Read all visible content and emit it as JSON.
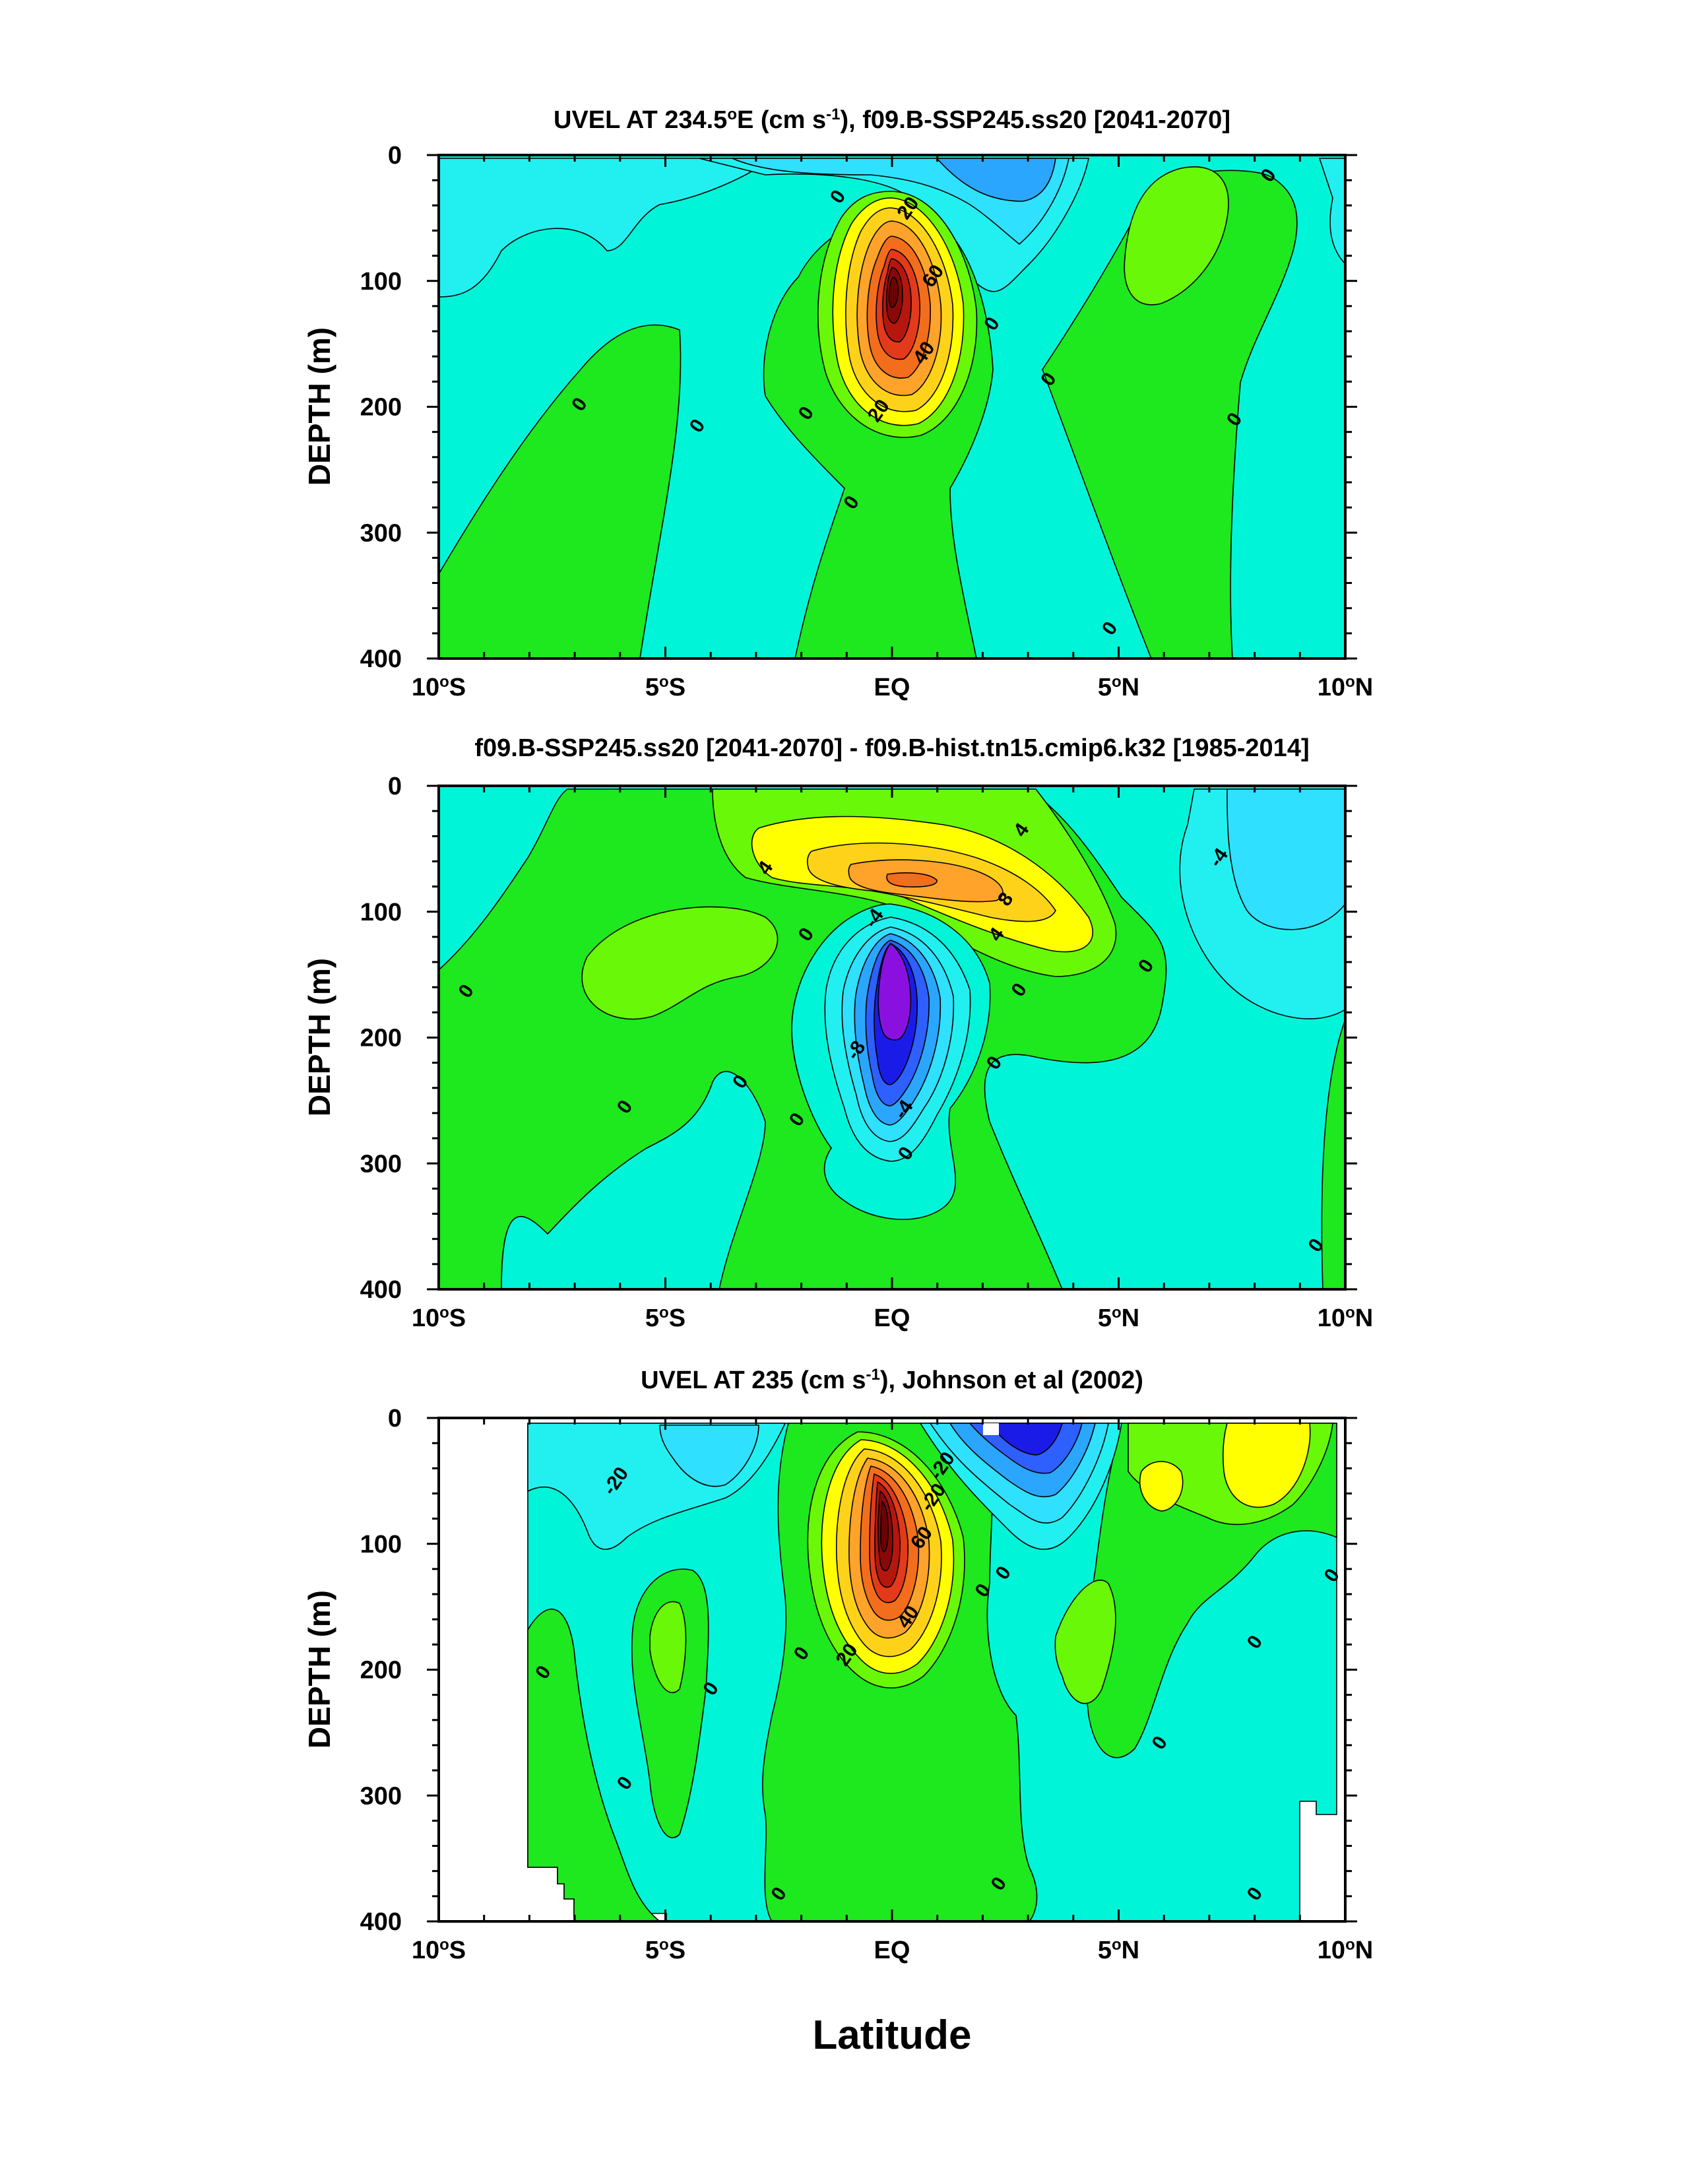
{
  "chart_data": [
    {
      "type": "contour",
      "title": "UVEL AT 234.5°E (cm s-1), f09.B-SSP245.ss20 [2041-2070]",
      "title_parts": [
        "UVEL AT 234.5",
        "o",
        "E (cm s",
        "-1",
        "), f09.B-SSP245.ss20 [2041-2070]"
      ],
      "ylabel": "DEPTH (m)",
      "xlim": [
        -10,
        10
      ],
      "ylim": [
        400,
        0
      ],
      "y_reversed": true,
      "x_ticks": [
        {
          "value": -10,
          "label": "10",
          "suffix": "S"
        },
        {
          "value": -5,
          "label": "5",
          "suffix": "S"
        },
        {
          "value": 0,
          "label": "EQ",
          "suffix": ""
        },
        {
          "value": 5,
          "label": "5",
          "suffix": "N"
        },
        {
          "value": 10,
          "label": "10",
          "suffix": "N"
        }
      ],
      "y_ticks": [
        0,
        100,
        200,
        300,
        400
      ],
      "contour_interval": 5,
      "features": [
        {
          "kind": "eastward_core",
          "lat": 0.0,
          "depth": 95,
          "max_value": 80,
          "label_values": [
            20,
            40,
            60
          ]
        },
        {
          "kind": "westward_surface",
          "lat": 2.0,
          "depth": 20,
          "min_value": -20
        },
        {
          "kind": "eastward_surface",
          "lat": 6.3,
          "depth": 60,
          "max_value": 8
        }
      ],
      "contour_labels": [
        {
          "text": "0",
          "lat": -6.9,
          "depth": 198
        },
        {
          "text": "0",
          "lat": -4.3,
          "depth": 215
        },
        {
          "text": "0",
          "lat": -1.9,
          "depth": 205
        },
        {
          "text": "0",
          "lat": -1.2,
          "depth": 33
        },
        {
          "text": "20",
          "lat": 0.35,
          "depth": 42
        },
        {
          "text": "60",
          "lat": 0.9,
          "depth": 96
        },
        {
          "text": "40",
          "lat": 0.7,
          "depth": 157
        },
        {
          "text": "20",
          "lat": -0.3,
          "depth": 203
        },
        {
          "text": "0",
          "lat": 2.2,
          "depth": 134
        },
        {
          "text": "0",
          "lat": 3.45,
          "depth": 178
        },
        {
          "text": "0",
          "lat": -0.9,
          "depth": 276
        },
        {
          "text": "0",
          "lat": 4.8,
          "depth": 376
        },
        {
          "text": "0",
          "lat": 7.55,
          "depth": 210
        },
        {
          "text": "0",
          "lat": 8.3,
          "depth": 16
        }
      ]
    },
    {
      "type": "contour",
      "title": "f09.B-SSP245.ss20 [2041-2070] - f09.B-hist.tn15.cmip6.k32 [1985-2014]",
      "ylabel": "DEPTH (m)",
      "xlim": [
        -10,
        10
      ],
      "ylim": [
        400,
        0
      ],
      "y_reversed": true,
      "x_ticks": [
        {
          "value": -10,
          "label": "10",
          "suffix": "S"
        },
        {
          "value": -5,
          "label": "5",
          "suffix": "S"
        },
        {
          "value": 0,
          "label": "EQ",
          "suffix": ""
        },
        {
          "value": 5,
          "label": "5",
          "suffix": "N"
        },
        {
          "value": 10,
          "label": "10",
          "suffix": "N"
        }
      ],
      "y_ticks": [
        0,
        100,
        200,
        300,
        400
      ],
      "contour_interval": 2,
      "features": [
        {
          "kind": "increase",
          "lat": 1.0,
          "depth": 72,
          "max_value": 12
        },
        {
          "kind": "decrease",
          "lat": 0.0,
          "depth": 160,
          "min_value": -16
        },
        {
          "kind": "decrease",
          "lat": 8.5,
          "depth": 70,
          "min_value": -6
        }
      ],
      "contour_labels": [
        {
          "text": "4",
          "lat": -2.8,
          "depth": 65
        },
        {
          "text": "4",
          "lat": 2.85,
          "depth": 35
        },
        {
          "text": "8",
          "lat": 2.5,
          "depth": 90
        },
        {
          "text": "-4",
          "lat": -0.4,
          "depth": 105
        },
        {
          "text": "4",
          "lat": 2.3,
          "depth": 118
        },
        {
          "text": "0",
          "lat": -1.9,
          "depth": 118
        },
        {
          "text": "-8",
          "lat": -0.8,
          "depth": 210
        },
        {
          "text": "-4",
          "lat": 0.25,
          "depth": 257
        },
        {
          "text": "0",
          "lat": 0.3,
          "depth": 292
        },
        {
          "text": "0",
          "lat": -9.4,
          "depth": 163
        },
        {
          "text": "0",
          "lat": -5.9,
          "depth": 255
        },
        {
          "text": "0",
          "lat": -3.35,
          "depth": 235
        },
        {
          "text": "0",
          "lat": -2.1,
          "depth": 265
        },
        {
          "text": "0",
          "lat": 2.25,
          "depth": 220
        },
        {
          "text": "0",
          "lat": 2.8,
          "depth": 162
        },
        {
          "text": "0",
          "lat": 5.6,
          "depth": 143
        },
        {
          "text": "-4",
          "lat": 7.2,
          "depth": 57
        },
        {
          "text": "0",
          "lat": 9.35,
          "depth": 365
        }
      ]
    },
    {
      "type": "contour",
      "title": "UVEL AT 235 (cm s-1), Johnson et al (2002)",
      "title_parts": [
        "UVEL AT 235 (cm s",
        "-1",
        "), Johnson et al (2002)"
      ],
      "ylabel": "DEPTH (m)",
      "xlim": [
        -10,
        10
      ],
      "ylim": [
        400,
        0
      ],
      "y_reversed": true,
      "x_ticks": [
        {
          "value": -10,
          "label": "10",
          "suffix": "S"
        },
        {
          "value": -5,
          "label": "5",
          "suffix": "S"
        },
        {
          "value": 0,
          "label": "EQ",
          "suffix": ""
        },
        {
          "value": 5,
          "label": "5",
          "suffix": "N"
        },
        {
          "value": 10,
          "label": "10",
          "suffix": "N"
        }
      ],
      "y_ticks": [
        0,
        100,
        200,
        300,
        400
      ],
      "contour_interval": 5,
      "data_lat_range": [
        -8,
        9.8
      ],
      "features": [
        {
          "kind": "eastward_core",
          "lat": -0.3,
          "depth": 88,
          "max_value": 85,
          "label_values": [
            20,
            40,
            60
          ]
        },
        {
          "kind": "westward_surface",
          "lat": 2.2,
          "depth": 15,
          "min_value": -50
        },
        {
          "kind": "westward_surface",
          "lat": -4.0,
          "depth": 25,
          "min_value": -15
        },
        {
          "kind": "eastward_surface",
          "lat": 7.5,
          "depth": 40,
          "max_value": 10
        }
      ],
      "contour_labels": [
        {
          "text": "-20",
          "lat": -6.1,
          "depth": 50
        },
        {
          "text": "-20",
          "lat": 1.1,
          "depth": 38
        },
        {
          "text": "-20",
          "lat": 0.9,
          "depth": 63
        },
        {
          "text": "60",
          "lat": 0.65,
          "depth": 95
        },
        {
          "text": "40",
          "lat": 0.35,
          "depth": 158
        },
        {
          "text": "20",
          "lat": -1.0,
          "depth": 188
        },
        {
          "text": "0",
          "lat": -2.0,
          "depth": 187
        },
        {
          "text": "0",
          "lat": -7.7,
          "depth": 202
        },
        {
          "text": "0",
          "lat": -5.9,
          "depth": 290
        },
        {
          "text": "0",
          "lat": -4.0,
          "depth": 215
        },
        {
          "text": "0",
          "lat": 2.0,
          "depth": 137
        },
        {
          "text": "0",
          "lat": 2.45,
          "depth": 123
        },
        {
          "text": "0",
          "lat": 5.9,
          "depth": 258
        },
        {
          "text": "0",
          "lat": 8.0,
          "depth": 178
        },
        {
          "text": "0",
          "lat": 9.7,
          "depth": 125
        },
        {
          "text": "0",
          "lat": -2.5,
          "depth": 378
        },
        {
          "text": "0",
          "lat": 2.35,
          "depth": 370
        },
        {
          "text": "0",
          "lat": 8.0,
          "depth": 378
        }
      ]
    }
  ],
  "x_axis_label": "Latitude",
  "degree_symbol": "o",
  "colors": {
    "zero_band": "#00f5d8",
    "band_pos1": "#1ee81e",
    "band_pos2": "#68f808",
    "band_neg1": "#22f0f0",
    "band_neg2": "#2fe0ff",
    "band_neg3": "#2aa6ff",
    "band_neg4": "#2d60ff",
    "band_neg5": "#1b1be8",
    "band_neg6": "#8a10e0",
    "yellow": "#ffff00",
    "gold": "#ffd21a",
    "orange": "#ffa32a",
    "dark_orange": "#f26e1c",
    "red": "#e23a1a",
    "dark_red": "#b5160e",
    "deep_red": "#8a0808"
  }
}
